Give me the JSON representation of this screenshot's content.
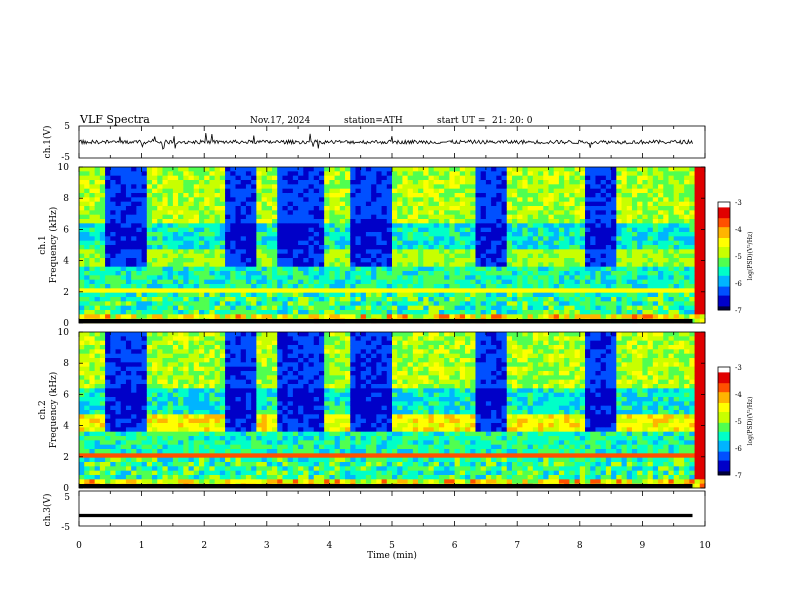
{
  "header": {
    "title": "VLF Spectra",
    "date": "Nov.17, 2024",
    "station": "station=ATH",
    "start_label": "start  UT  =",
    "start_time": "21: 20: 0"
  },
  "colors": {
    "trace": "#000000",
    "colormap": [
      "#00003c",
      "#0000c8",
      "#0050ff",
      "#00b4ff",
      "#00ffc8",
      "#50ff50",
      "#c8ff00",
      "#ffff00",
      "#ffb400",
      "#ff5000",
      "#e00000",
      "#ffffff"
    ]
  },
  "chart_data": [
    {
      "type": "line",
      "panel": "ch1-voltage",
      "ylabel": "ch.1(V)",
      "ylim": [
        -5,
        5
      ],
      "yticks": [
        "5",
        "-5"
      ],
      "xlim": [
        0,
        10
      ],
      "approx_level": 0,
      "approx_noise_amplitude": 1.2
    },
    {
      "type": "heatmap",
      "panel": "ch1-spectrogram",
      "ylabel": "ch.1\nFrequency (kHz)",
      "ylabel_line1": "ch.1",
      "ylabel_line2": "Frequency  (kHz)",
      "ylim": [
        0,
        10
      ],
      "yticks": [
        "0",
        "2",
        "4",
        "6",
        "8",
        "10"
      ],
      "xlim": [
        0,
        10
      ],
      "colorbar": {
        "label": "log(PSD)(V²/Hz)",
        "range": [
          -7,
          -3
        ],
        "ticks": [
          "-3",
          "-4",
          "-5",
          "-6",
          "-7"
        ]
      },
      "quiet_intervals_min": [
        [
          0.42,
          1.05
        ],
        [
          2.3,
          2.8
        ],
        [
          3.2,
          3.95
        ],
        [
          4.3,
          5.0
        ],
        [
          6.3,
          6.85
        ],
        [
          8.1,
          8.55
        ]
      ]
    },
    {
      "type": "heatmap",
      "panel": "ch2-spectrogram",
      "ylabel_line1": "ch.2",
      "ylabel_line2": "Frequency  (kHz)",
      "ylim": [
        0,
        10
      ],
      "yticks": [
        "0",
        "2",
        "4",
        "6",
        "8",
        "10"
      ],
      "xlim": [
        0,
        10
      ],
      "colorbar": {
        "label": "log(PSD)(V²/Hz)",
        "range": [
          -7,
          -3
        ],
        "ticks": [
          "-3",
          "-4",
          "-5",
          "-6",
          "-7"
        ]
      },
      "quiet_intervals_min": [
        [
          0.42,
          1.05
        ],
        [
          2.3,
          2.8
        ],
        [
          3.2,
          3.95
        ],
        [
          4.3,
          5.0
        ],
        [
          6.3,
          6.85
        ],
        [
          8.1,
          8.55
        ]
      ]
    },
    {
      "type": "line",
      "panel": "ch3-voltage",
      "ylabel": "ch.3(V)",
      "ylim": [
        -5,
        5
      ],
      "yticks": [
        "5",
        "-5"
      ],
      "xlim": [
        0,
        10
      ],
      "approx_level": -2,
      "xlabel": "Time  (min)",
      "xticks": [
        "0",
        "1",
        "2",
        "3",
        "4",
        "5",
        "6",
        "7",
        "8",
        "9",
        "10"
      ]
    }
  ]
}
